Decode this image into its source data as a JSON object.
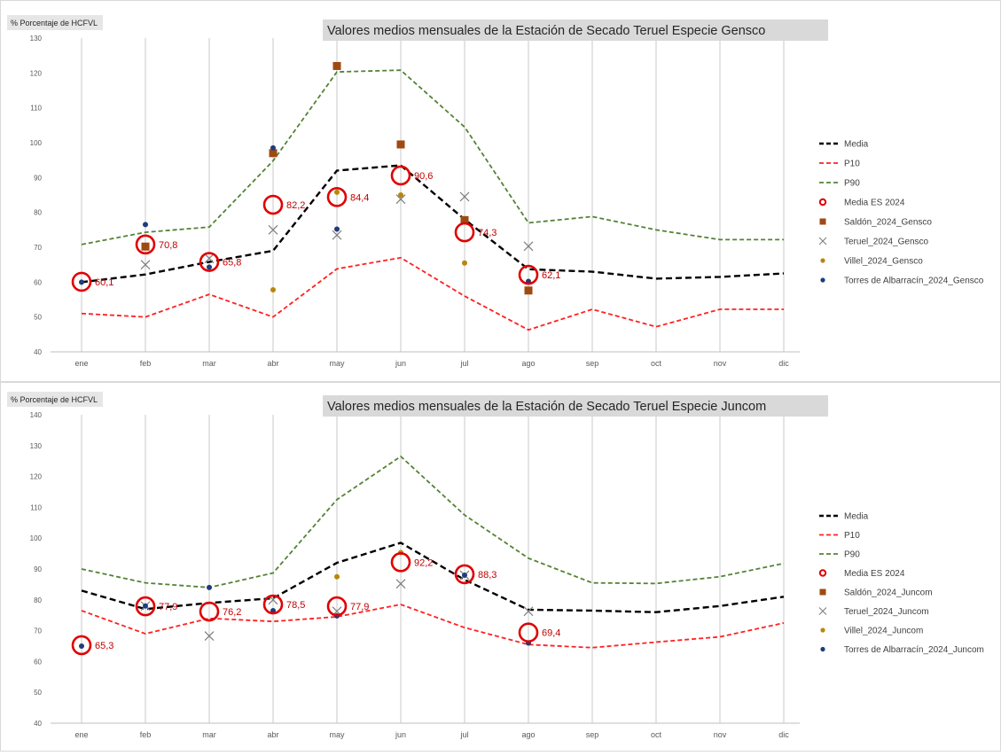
{
  "chart_data": [
    {
      "type": "line",
      "title": "Valores medios mensuales de la Estación de Secado Teruel Especie Gensco",
      "ylabel": "% Porcentaje de HCFVL",
      "xlabel": "",
      "ylim": [
        40,
        130
      ],
      "yticks": [
        40,
        50,
        60,
        70,
        80,
        90,
        100,
        110,
        120,
        130
      ],
      "grid": "vertical",
      "legend_position": "right",
      "categories": [
        "ene",
        "feb",
        "mar",
        "abr",
        "may",
        "jun",
        "jul",
        "ago",
        "sep",
        "oct",
        "nov",
        "dic"
      ],
      "series": [
        {
          "name": "Media",
          "style": "dashed-line",
          "color": "#000000",
          "values": [
            60.0,
            62.2,
            65.8,
            69.0,
            92.0,
            93.5,
            78.0,
            63.7,
            63.0,
            61.0,
            61.5,
            62.5
          ]
        },
        {
          "name": "P10",
          "style": "dashed-line",
          "color": "#ff2020",
          "values": [
            51.0,
            50.0,
            56.5,
            50.0,
            63.8,
            67.0,
            56.0,
            46.3,
            52.2,
            47.2,
            52.2,
            52.2
          ]
        },
        {
          "name": "P90",
          "style": "dashed-line",
          "color": "#548235",
          "values": [
            70.8,
            74.3,
            75.8,
            94.8,
            120.3,
            120.8,
            104.5,
            77.0,
            78.8,
            75.0,
            72.2,
            72.2
          ]
        },
        {
          "name": "Media ES 2024",
          "style": "ring",
          "color": "#e00000",
          "values": [
            60.1,
            70.8,
            65.8,
            82.2,
            84.4,
            90.6,
            74.3,
            62.1,
            null,
            null,
            null,
            null
          ],
          "labels": [
            "60,1",
            "70,8",
            "65,8",
            "82,2",
            "84,4",
            "90,6",
            "74,3",
            "62,1",
            "",
            "",
            "",
            ""
          ]
        },
        {
          "name": "Saldón_2024_Gensco",
          "style": "square",
          "color": "#9e4a12",
          "values": [
            null,
            70.2,
            null,
            97.0,
            122.0,
            null,
            77.8,
            57.6,
            null,
            null,
            null,
            null
          ],
          "values2": [
            null,
            null,
            null,
            null,
            null,
            99.5,
            null,
            null,
            null,
            null,
            null,
            null
          ]
        },
        {
          "name": "Teruel_2024_Gensco",
          "style": "cross",
          "color": "#7f7f7f",
          "values": [
            null,
            65.0,
            66.8,
            75.0,
            73.5,
            83.8,
            84.5,
            70.3,
            null,
            null,
            null,
            null
          ]
        },
        {
          "name": "Villel_2024_Gensco",
          "style": "dot",
          "color": "#b8860b",
          "values": [
            null,
            null,
            null,
            57.8,
            85.8,
            85.0,
            65.5,
            null,
            null,
            null,
            null,
            null
          ]
        },
        {
          "name": "Torres de Albarracín_2024_Gensco",
          "style": "dot",
          "color": "#1f3c7a",
          "values": [
            60.0,
            76.5,
            64.3,
            98.5,
            75.2,
            null,
            null,
            60.2,
            null,
            null,
            null,
            null
          ]
        }
      ]
    },
    {
      "type": "line",
      "title": "Valores medios mensuales de la Estación de Secado Teruel Especie Juncom",
      "ylabel": "% Porcentaje de HCFVL",
      "xlabel": "",
      "ylim": [
        40,
        140
      ],
      "yticks": [
        40,
        50,
        60,
        70,
        80,
        90,
        100,
        110,
        120,
        130,
        140
      ],
      "grid": "vertical",
      "legend_position": "right",
      "categories": [
        "ene",
        "feb",
        "mar",
        "abr",
        "may",
        "jun",
        "jul",
        "ago",
        "sep",
        "oct",
        "nov",
        "dic"
      ],
      "series": [
        {
          "name": "Media",
          "style": "dashed-line",
          "color": "#000000",
          "values": [
            83.0,
            77.0,
            79.0,
            80.5,
            92.0,
            98.5,
            86.5,
            76.8,
            76.5,
            76.0,
            78.0,
            81.0
          ]
        },
        {
          "name": "P10",
          "style": "dashed-line",
          "color": "#ff2020",
          "values": [
            76.5,
            69.0,
            74.0,
            73.0,
            74.5,
            78.5,
            71.0,
            65.5,
            64.5,
            66.3,
            68.0,
            72.5
          ]
        },
        {
          "name": "P90",
          "style": "dashed-line",
          "color": "#548235",
          "values": [
            90.0,
            85.5,
            84.0,
            88.7,
            112.5,
            126.5,
            107.5,
            93.5,
            85.5,
            85.3,
            87.5,
            91.8
          ]
        },
        {
          "name": "Media ES 2024",
          "style": "ring",
          "color": "#e00000",
          "values": [
            65.3,
            77.9,
            76.2,
            78.5,
            77.9,
            92.2,
            88.3,
            69.4,
            null,
            null,
            null,
            null
          ],
          "labels": [
            "65,3",
            "77,9",
            "76,2",
            "78,5",
            "77,9",
            "92,2",
            "88,3",
            "69,4",
            "",
            "",
            "",
            ""
          ]
        },
        {
          "name": "Saldón_2024_Juncom",
          "style": "square",
          "color": "#9e4a12",
          "values": [
            null,
            null,
            null,
            null,
            null,
            null,
            null,
            null,
            null,
            null,
            null,
            null
          ]
        },
        {
          "name": "Teruel_2024_Juncom",
          "style": "cross",
          "color": "#7f7f7f",
          "values": [
            null,
            78.0,
            68.3,
            80.0,
            76.3,
            85.2,
            88.0,
            76.3,
            null,
            null,
            null,
            null
          ]
        },
        {
          "name": "Villel_2024_Juncom",
          "style": "dot",
          "color": "#b8860b",
          "values": [
            null,
            null,
            null,
            null,
            87.5,
            95.3,
            null,
            null,
            null,
            null,
            null,
            null
          ]
        },
        {
          "name": "Torres de Albarracín_2024_Juncom",
          "style": "dot",
          "color": "#1f3c7a",
          "values": [
            65.0,
            78.0,
            84.0,
            76.5,
            74.8,
            null,
            88.0,
            66.0,
            null,
            null,
            null,
            null
          ]
        }
      ]
    }
  ]
}
